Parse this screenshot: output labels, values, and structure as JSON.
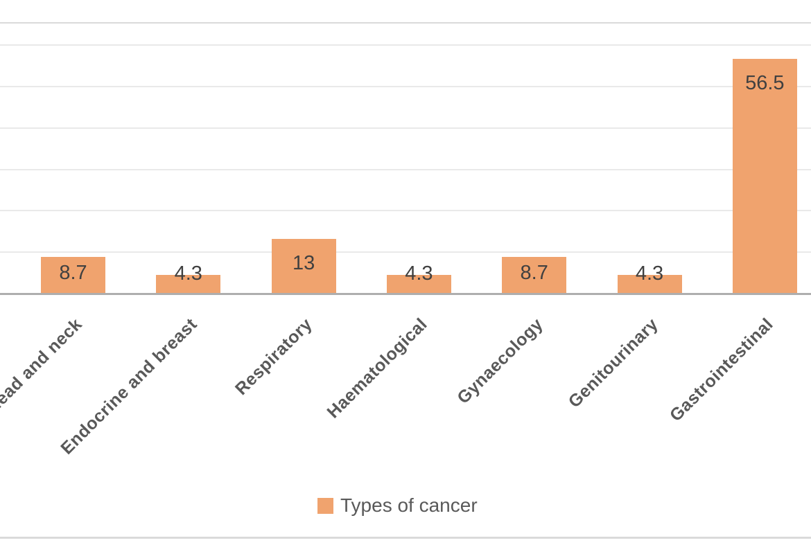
{
  "chart_data": {
    "type": "bar",
    "categories": [
      "Head and neck",
      "Endocrine and breast",
      "Respiratory",
      "Haematological",
      "Gynaecology",
      "Genitourinary",
      "Gastrointestinal"
    ],
    "values": [
      8.7,
      4.3,
      13,
      4.3,
      8.7,
      4.3,
      56.5
    ],
    "value_labels": [
      "8.7",
      "4.3",
      "13",
      "4.3",
      "8.7",
      "4.3",
      "56.5"
    ],
    "series": [
      {
        "name": "Types of cancer",
        "values": [
          8.7,
          4.3,
          13,
          4.3,
          8.7,
          4.3,
          56.5
        ]
      }
    ],
    "title": "",
    "xlabel": "",
    "ylabel": "",
    "ylim": [
      0,
      60
    ],
    "gridline_step": 10,
    "grid": true,
    "legend": {
      "position": "bottom",
      "entries": [
        "Types of cancer"
      ]
    },
    "layout_hints": {
      "x_tick_rotation_deg": 45,
      "first_category_label_clipped_at_left": true,
      "data_label_position": "inside-end",
      "y_tick_labels_visible": false
    },
    "colors": {
      "bar_fill": "#f0a36e",
      "data_label": "#404040",
      "category_label": "#595959",
      "legend_text": "#595959",
      "gridline": "#e9e9e9",
      "axis_line": "#aeaeae",
      "chart_border": "#dadada",
      "background": "#ffffff"
    }
  }
}
